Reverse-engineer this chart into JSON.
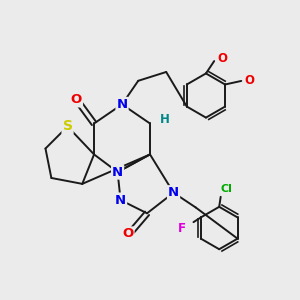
{
  "background_color": "#ebebeb",
  "bond_color": "#1a1a1a",
  "bond_width": 1.4,
  "atom_colors": {
    "N": "#0000ee",
    "O": "#ee0000",
    "S": "#cccc00",
    "F": "#dd00dd",
    "Cl": "#00aa00",
    "H": "#008888",
    "C": "#1a1a1a"
  },
  "fs": 8.5
}
